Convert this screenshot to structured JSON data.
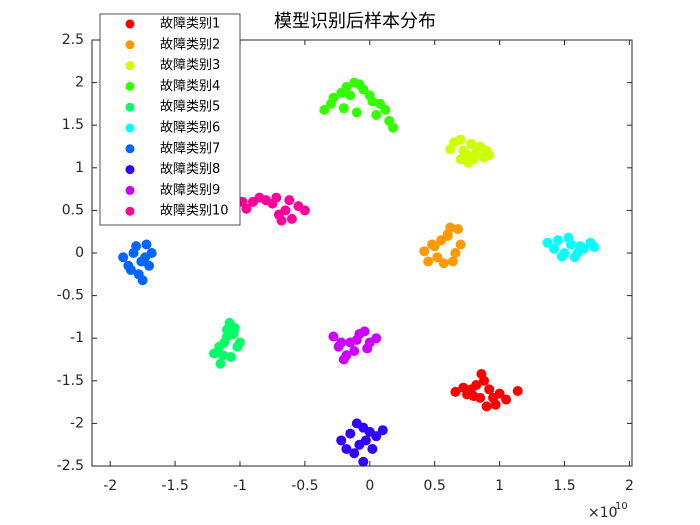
{
  "chart_data": {
    "type": "scatter",
    "title": "模型识别后样本分布",
    "xlim": [
      -2.14,
      2.02
    ],
    "ylim": [
      -2.5,
      2.5
    ],
    "xticks": [
      -2,
      -1.5,
      -1,
      -0.5,
      0,
      0.5,
      1,
      1.5,
      2
    ],
    "yticks": [
      -2.5,
      -2,
      -1.5,
      -1,
      -0.5,
      0,
      0.5,
      1,
      1.5,
      2,
      2.5
    ],
    "x_exponent": {
      "base": "×10",
      "power": "10"
    },
    "grid": false,
    "legend": "upper left",
    "series": [
      {
        "name": "故障类别1",
        "color": "#ff0000",
        "x": [
          0.66,
          0.72,
          0.78,
          0.82,
          0.86,
          0.88,
          0.92,
          0.95,
          1.0,
          1.05,
          1.14,
          0.85,
          0.9,
          0.8,
          0.97,
          0.75
        ],
        "values": [
          -1.63,
          -1.58,
          -1.6,
          -1.55,
          -1.42,
          -1.5,
          -1.6,
          -1.7,
          -1.65,
          -1.72,
          -1.62,
          -1.7,
          -1.8,
          -1.68,
          -1.78,
          -1.66
        ]
      },
      {
        "name": "故障类别2",
        "color": "#ff9900",
        "x": [
          0.42,
          0.45,
          0.5,
          0.55,
          0.6,
          0.62,
          0.68,
          0.7,
          0.52,
          0.57,
          0.64,
          0.48,
          0.66,
          0.6
        ],
        "values": [
          0.02,
          -0.1,
          0.08,
          0.15,
          0.2,
          0.3,
          0.28,
          0.1,
          -0.05,
          -0.12,
          -0.1,
          0.1,
          0.0,
          0.22
        ]
      },
      {
        "name": "故障类别3",
        "color": "#ccff00",
        "x": [
          0.62,
          0.65,
          0.7,
          0.72,
          0.75,
          0.78,
          0.8,
          0.85,
          0.88,
          0.92,
          0.7,
          0.82,
          0.76,
          0.9
        ],
        "values": [
          1.22,
          1.3,
          1.33,
          1.2,
          1.15,
          1.28,
          1.1,
          1.25,
          1.12,
          1.15,
          1.1,
          1.18,
          1.06,
          1.2
        ]
      },
      {
        "name": "故障类别4",
        "color": "#33ff00",
        "x": [
          -0.35,
          -0.3,
          -0.28,
          -0.22,
          -0.18,
          -0.12,
          -0.08,
          -0.05,
          0.0,
          0.02,
          0.08,
          0.12,
          0.15,
          0.18,
          -0.2,
          -0.1,
          0.05,
          -0.15
        ],
        "values": [
          1.68,
          1.75,
          1.82,
          1.88,
          1.95,
          2.0,
          1.98,
          1.92,
          1.85,
          1.78,
          1.75,
          1.68,
          1.55,
          1.47,
          1.7,
          1.65,
          1.62,
          1.85
        ]
      },
      {
        "name": "故障类别5",
        "color": "#00ff66",
        "x": [
          -1.2,
          -1.15,
          -1.12,
          -1.1,
          -1.08,
          -1.05,
          -1.02,
          -1.0,
          -1.13,
          -1.07,
          -1.1,
          -1.04,
          -1.16
        ],
        "values": [
          -1.18,
          -1.3,
          -1.05,
          -0.9,
          -0.82,
          -0.95,
          -1.1,
          -1.05,
          -1.2,
          -1.22,
          -0.98,
          -0.88,
          -1.1
        ]
      },
      {
        "name": "故障类别6",
        "color": "#00ffff",
        "x": [
          1.37,
          1.42,
          1.45,
          1.5,
          1.55,
          1.58,
          1.62,
          1.65,
          1.7,
          1.73,
          1.48,
          1.6,
          1.53
        ],
        "values": [
          0.12,
          0.05,
          0.15,
          0.0,
          0.1,
          -0.05,
          0.08,
          0.05,
          0.12,
          0.07,
          -0.04,
          0.0,
          0.18
        ]
      },
      {
        "name": "故障类别7",
        "color": "#0066ff",
        "x": [
          -1.9,
          -1.86,
          -1.82,
          -1.78,
          -1.75,
          -1.72,
          -1.68,
          -1.8,
          -1.76,
          -1.7,
          -1.84,
          -1.73
        ],
        "values": [
          -0.05,
          -0.15,
          0.0,
          -0.25,
          -0.32,
          0.1,
          0.0,
          0.08,
          -0.1,
          -0.15,
          -0.2,
          -0.05
        ]
      },
      {
        "name": "故障类别8",
        "color": "#3300ff",
        "x": [
          -0.22,
          -0.18,
          -0.15,
          -0.1,
          -0.05,
          0.0,
          0.05,
          0.1,
          -0.08,
          -0.03,
          -0.12,
          -0.05,
          0.02
        ],
        "values": [
          -2.2,
          -2.3,
          -2.12,
          -2.0,
          -2.05,
          -2.1,
          -2.15,
          -2.08,
          -2.25,
          -2.2,
          -2.35,
          -2.45,
          -2.3
        ]
      },
      {
        "name": "故障类别9",
        "color": "#cc00ff",
        "x": [
          -0.28,
          -0.24,
          -0.2,
          -0.15,
          -0.12,
          -0.08,
          -0.04,
          0.0,
          0.05,
          -0.18,
          -0.1,
          -0.02,
          -0.22
        ],
        "values": [
          -0.98,
          -1.1,
          -1.25,
          -1.05,
          -1.15,
          -0.95,
          -0.92,
          -1.05,
          -1.0,
          -1.2,
          -1.02,
          -1.12,
          -1.05
        ]
      },
      {
        "name": "故障类别10",
        "color": "#ff0099",
        "x": [
          -0.98,
          -0.95,
          -0.9,
          -0.85,
          -0.8,
          -0.75,
          -0.7,
          -0.65,
          -0.6,
          -0.55,
          -0.5,
          -0.72,
          -0.62,
          -0.68
        ],
        "values": [
          0.6,
          0.52,
          0.6,
          0.65,
          0.62,
          0.58,
          0.45,
          0.5,
          0.4,
          0.55,
          0.5,
          0.65,
          0.62,
          0.38
        ]
      }
    ]
  }
}
